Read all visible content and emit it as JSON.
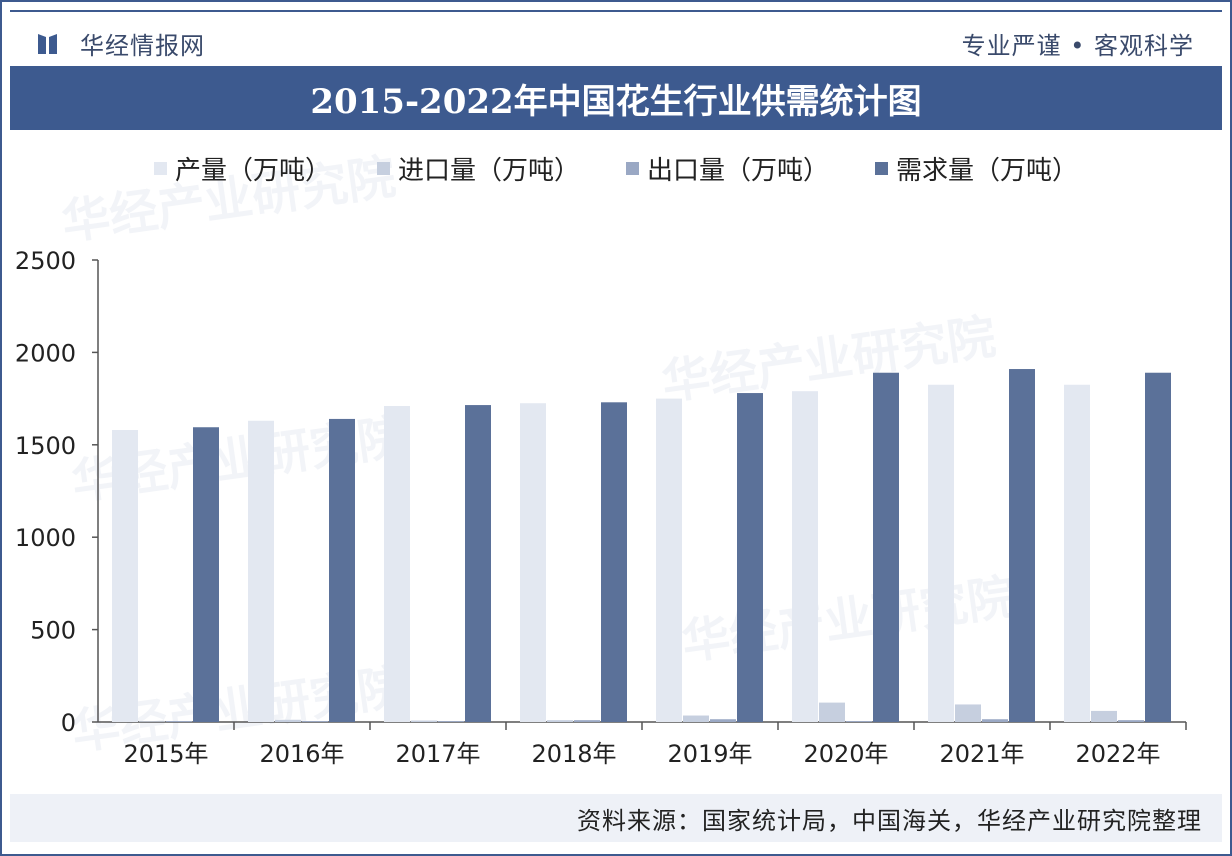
{
  "header": {
    "brand": "华经情报网",
    "slogan": "专业严谨 • 客观科学",
    "title": "2015-2022年中国花生行业供需统计图"
  },
  "watermark": "华经产业研究院",
  "source": "资料来源：国家统计局，中国海关，华经产业研究院整理",
  "colors": {
    "accent": "#3d5a8f",
    "production": "#e3e8f1",
    "import": "#c6cfdf",
    "export": "#9aa8c4",
    "demand": "#5b7199"
  },
  "chart_data": {
    "type": "bar",
    "categories": [
      "2015年",
      "2016年",
      "2017年",
      "2018年",
      "2019年",
      "2020年",
      "2021年",
      "2022年"
    ],
    "series": [
      {
        "name": "产量（万吨）",
        "values": [
          1580,
          1630,
          1710,
          1725,
          1750,
          1790,
          1825,
          1825
        ]
      },
      {
        "name": "进口量（万吨）",
        "values": [
          3,
          12,
          8,
          10,
          35,
          105,
          95,
          60
        ]
      },
      {
        "name": "出口量（万吨）",
        "values": [
          5,
          5,
          5,
          10,
          15,
          5,
          15,
          10
        ]
      },
      {
        "name": "需求量（万吨）",
        "values": [
          1595,
          1640,
          1715,
          1730,
          1780,
          1890,
          1910,
          1890
        ]
      }
    ],
    "yticks": [
      "0",
      "500",
      "1000",
      "1500",
      "2000",
      "2500"
    ],
    "ylim": [
      0,
      2500
    ],
    "legend_position": "top",
    "grid": false
  }
}
